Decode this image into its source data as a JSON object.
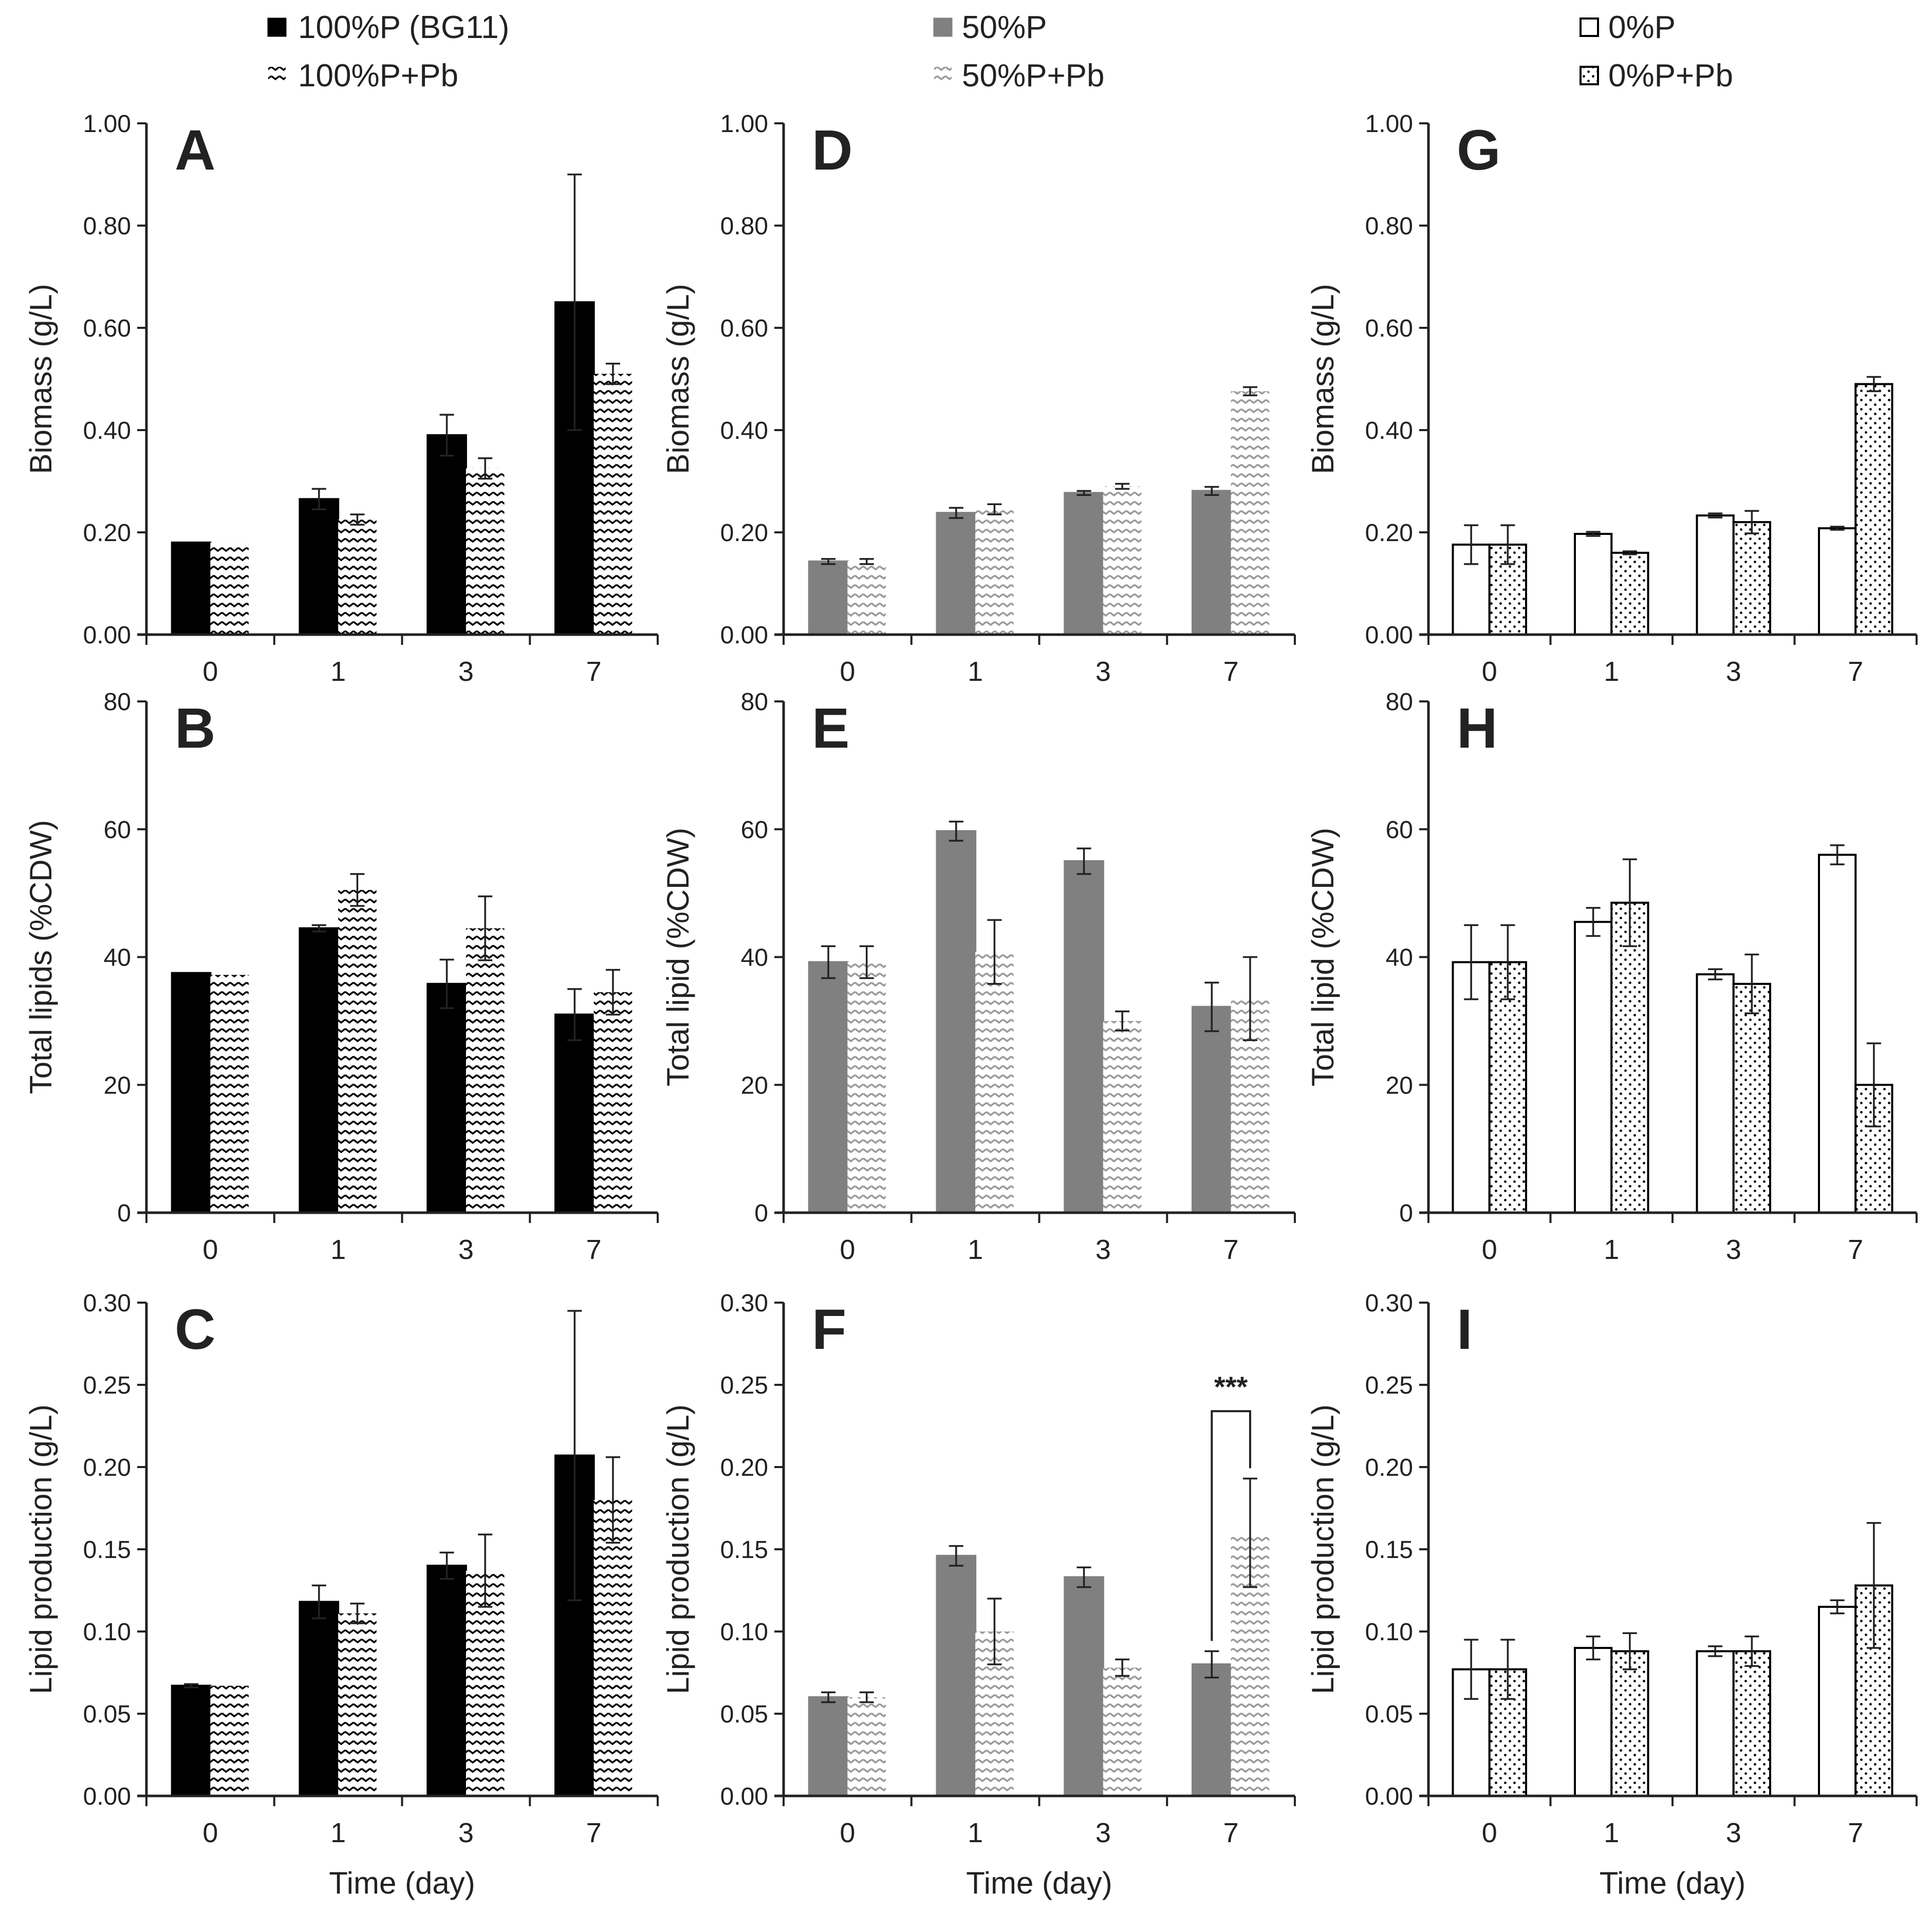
{
  "colors": {
    "black": "#000000",
    "gray": "#808080",
    "white": "#ffffff",
    "axis": "#222222"
  },
  "legend": [
    {
      "label": "100%P (BG11)",
      "style": "black"
    },
    {
      "label": "100%P+Pb",
      "style": "black-zigzag"
    },
    {
      "label": "50%P",
      "style": "gray"
    },
    {
      "label": "50%P+Pb",
      "style": "gray-zigzag"
    },
    {
      "label": "0%P",
      "style": "white"
    },
    {
      "label": "0%P+Pb",
      "style": "white-dots"
    }
  ],
  "chart_data": [
    {
      "panel": "A",
      "type": "bar",
      "ylabel": "Biomass (g/L)",
      "xlabel": "",
      "categories": [
        "0",
        "1",
        "3",
        "7"
      ],
      "ylim": [
        0,
        1.0
      ],
      "yticks": [
        "0.00",
        "0.20",
        "0.40",
        "0.60",
        "0.80",
        "1.00"
      ],
      "series": [
        {
          "name": "100%P (BG11)",
          "style": "black",
          "values": [
            0.18,
            0.265,
            0.39,
            0.65
          ],
          "errors": [
            0,
            0.02,
            0.04,
            0.25
          ]
        },
        {
          "name": "100%P+Pb",
          "style": "black-zigzag",
          "values": [
            0.18,
            0.225,
            0.325,
            0.51
          ],
          "errors": [
            0,
            0.01,
            0.02,
            0.02
          ]
        }
      ]
    },
    {
      "panel": "B",
      "type": "bar",
      "ylabel": "Total lipids (%CDW)",
      "xlabel": "",
      "categories": [
        "0",
        "1",
        "3",
        "7"
      ],
      "ylim": [
        0,
        80
      ],
      "yticks": [
        "0",
        "20",
        "40",
        "60",
        "80"
      ],
      "series": [
        {
          "name": "100%P (BG11)",
          "style": "black",
          "values": [
            37.5,
            44.5,
            35.8,
            31
          ],
          "errors": [
            0,
            0.5,
            3.8,
            4
          ]
        },
        {
          "name": "100%P+Pb",
          "style": "black-zigzag",
          "values": [
            37.2,
            50.5,
            44.5,
            34.5
          ],
          "errors": [
            0,
            2.5,
            5,
            3.5
          ]
        }
      ]
    },
    {
      "panel": "C",
      "type": "bar",
      "ylabel": "Lipid production (g/L)",
      "xlabel": "Time (day)",
      "categories": [
        "0",
        "1",
        "3",
        "7"
      ],
      "ylim": [
        0,
        0.3
      ],
      "yticks": [
        "0.00",
        "0.05",
        "0.10",
        "0.15",
        "0.20",
        "0.25",
        "0.30"
      ],
      "series": [
        {
          "name": "100%P (BG11)",
          "style": "black",
          "values": [
            0.067,
            0.118,
            0.14,
            0.207
          ],
          "errors": [
            0.001,
            0.01,
            0.008,
            0.088
          ]
        },
        {
          "name": "100%P+Pb",
          "style": "black-zigzag",
          "values": [
            0.067,
            0.111,
            0.137,
            0.18
          ],
          "errors": [
            0,
            0.006,
            0.022,
            0.026
          ]
        }
      ]
    },
    {
      "panel": "D",
      "type": "bar",
      "ylabel": "Biomass (g/L)",
      "xlabel": "",
      "categories": [
        "0",
        "1",
        "3",
        "7"
      ],
      "ylim": [
        0,
        1.0
      ],
      "yticks": [
        "0.00",
        "0.20",
        "0.40",
        "0.60",
        "0.80",
        "1.00"
      ],
      "series": [
        {
          "name": "50%P",
          "style": "gray",
          "values": [
            0.143,
            0.238,
            0.277,
            0.281
          ],
          "errors": [
            0.005,
            0.01,
            0.004,
            0.008
          ]
        },
        {
          "name": "50%P+Pb",
          "style": "gray-zigzag",
          "values": [
            0.143,
            0.245,
            0.29,
            0.476
          ],
          "errors": [
            0.005,
            0.01,
            0.005,
            0.008
          ]
        }
      ]
    },
    {
      "panel": "E",
      "type": "bar",
      "ylabel": "Total lipid (%CDW)",
      "xlabel": "",
      "categories": [
        "0",
        "1",
        "3",
        "7"
      ],
      "ylim": [
        0,
        80
      ],
      "yticks": [
        "0",
        "20",
        "40",
        "60",
        "80"
      ],
      "series": [
        {
          "name": "50%P",
          "style": "gray",
          "values": [
            39.2,
            59.7,
            55,
            32.2
          ],
          "errors": [
            2.5,
            1.5,
            2,
            3.8
          ]
        },
        {
          "name": "50%P+Pb",
          "style": "gray-zigzag",
          "values": [
            39.2,
            40.8,
            30,
            33.5
          ],
          "errors": [
            2.5,
            5,
            1.5,
            6.5
          ]
        }
      ]
    },
    {
      "panel": "F",
      "type": "bar",
      "ylabel": "Lipid production (g/L)",
      "xlabel": "Time (day)",
      "categories": [
        "0",
        "1",
        "3",
        "7"
      ],
      "ylim": [
        0,
        0.3
      ],
      "yticks": [
        "0.00",
        "0.05",
        "0.10",
        "0.15",
        "0.20",
        "0.25",
        "0.30"
      ],
      "annotation": {
        "category": "7",
        "text": "***"
      },
      "series": [
        {
          "name": "50%P",
          "style": "gray",
          "values": [
            0.06,
            0.146,
            0.133,
            0.08
          ],
          "errors": [
            0.003,
            0.006,
            0.006,
            0.008
          ]
        },
        {
          "name": "50%P+Pb",
          "style": "gray-zigzag",
          "values": [
            0.06,
            0.1,
            0.078,
            0.16
          ],
          "errors": [
            0.003,
            0.02,
            0.005,
            0.033
          ]
        }
      ]
    },
    {
      "panel": "G",
      "type": "bar",
      "ylabel": "Biomass (g/L)",
      "xlabel": "",
      "categories": [
        "0",
        "1",
        "3",
        "7"
      ],
      "ylim": [
        0,
        1.0
      ],
      "yticks": [
        "0.00",
        "0.20",
        "0.40",
        "0.60",
        "0.80",
        "1.00"
      ],
      "series": [
        {
          "name": "0%P",
          "style": "white",
          "values": [
            0.176,
            0.197,
            0.233,
            0.208
          ],
          "errors": [
            0.038,
            0.004,
            0.004,
            0.003
          ]
        },
        {
          "name": "0%P+Pb",
          "style": "white-dots",
          "values": [
            0.176,
            0.16,
            0.22,
            0.49
          ],
          "errors": [
            0.038,
            0.003,
            0.022,
            0.014
          ]
        }
      ]
    },
    {
      "panel": "H",
      "type": "bar",
      "ylabel": "Total lipid (%CDW)",
      "xlabel": "",
      "categories": [
        "0",
        "1",
        "3",
        "7"
      ],
      "ylim": [
        0,
        80
      ],
      "yticks": [
        "0",
        "20",
        "40",
        "60",
        "80"
      ],
      "series": [
        {
          "name": "0%P",
          "style": "white",
          "values": [
            39.2,
            45.5,
            37.3,
            56
          ],
          "errors": [
            5.8,
            2.2,
            0.8,
            1.5
          ]
        },
        {
          "name": "0%P+Pb",
          "style": "white-dots",
          "values": [
            39.2,
            48.5,
            35.8,
            20
          ],
          "errors": [
            5.8,
            6.8,
            4.6,
            6.5
          ]
        }
      ]
    },
    {
      "panel": "I",
      "type": "bar",
      "ylabel": "Lipid production (g/L)",
      "xlabel": "Time (day)",
      "categories": [
        "0",
        "1",
        "3",
        "7"
      ],
      "ylim": [
        0,
        0.3
      ],
      "yticks": [
        "0.00",
        "0.05",
        "0.10",
        "0.15",
        "0.20",
        "0.25",
        "0.30"
      ],
      "series": [
        {
          "name": "0%P",
          "style": "white",
          "values": [
            0.077,
            0.09,
            0.088,
            0.115
          ],
          "errors": [
            0.018,
            0.007,
            0.003,
            0.004
          ]
        },
        {
          "name": "0%P+Pb",
          "style": "white-dots",
          "values": [
            0.077,
            0.088,
            0.088,
            0.128
          ],
          "errors": [
            0.018,
            0.011,
            0.009,
            0.038
          ]
        }
      ]
    }
  ]
}
